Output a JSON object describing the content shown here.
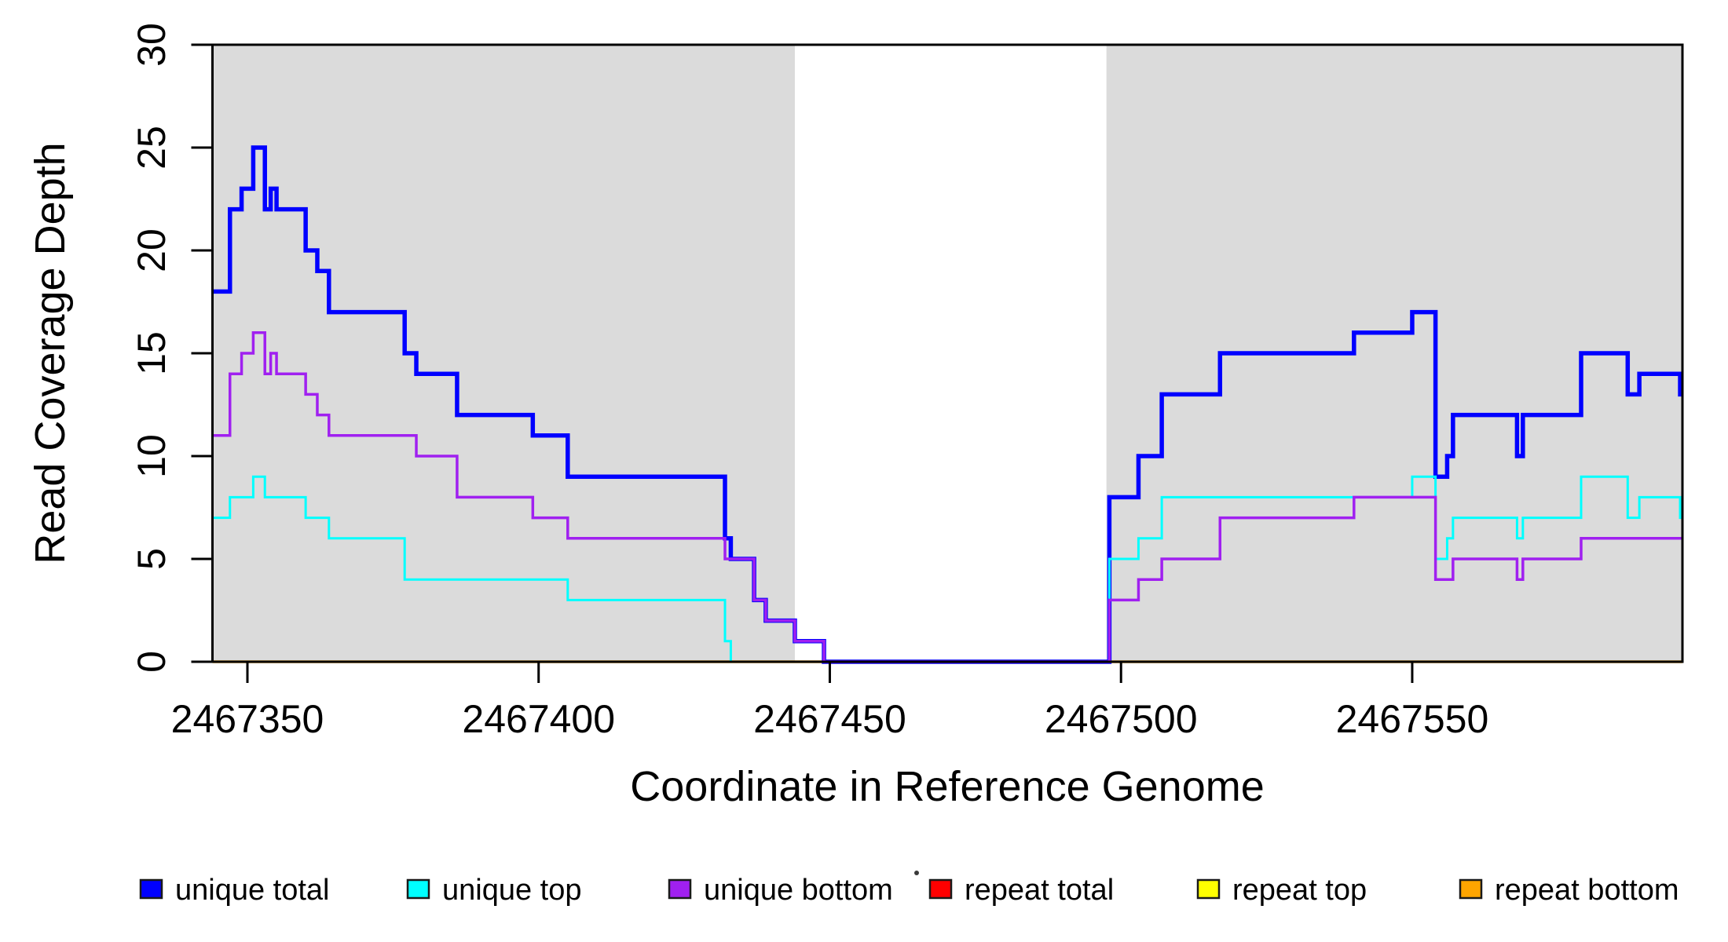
{
  "chart_data": {
    "type": "line",
    "subtype": "step",
    "title": "",
    "xlabel": "Coordinate in Reference Genome",
    "ylabel": "Read Coverage Depth",
    "xlim": [
      2467344,
      2467596.4
    ],
    "ylim": [
      0,
      30
    ],
    "x_ticks": [
      2467350,
      2467400,
      2467450,
      2467500,
      2467550
    ],
    "y_ticks": [
      0,
      5,
      10,
      15,
      20,
      25,
      30
    ],
    "grid": false,
    "background_bands": {
      "color": "#DBDBDB",
      "regions": [
        {
          "start": 2467344,
          "end": 2467444
        },
        {
          "start": 2467497.5,
          "end": 2467596.4
        }
      ]
    },
    "legend": {
      "position": "bottom",
      "entries": [
        {
          "label": "unique total",
          "color": "#0000FF"
        },
        {
          "label": "unique top",
          "color": "#00FFFF"
        },
        {
          "label": "unique bottom",
          "color": "#A020F0"
        },
        {
          "label": "repeat total",
          "color": "#FF0000"
        },
        {
          "label": "repeat top",
          "color": "#FFFF00"
        },
        {
          "label": "repeat bottom",
          "color": "#FFA500"
        }
      ]
    },
    "series": [
      {
        "name": "unique total",
        "color": "#0000FF",
        "width": 5.5,
        "points": [
          [
            2467344,
            18
          ],
          [
            2467347,
            22
          ],
          [
            2467349,
            23
          ],
          [
            2467351,
            25
          ],
          [
            2467353,
            22
          ],
          [
            2467354,
            23
          ],
          [
            2467355,
            22
          ],
          [
            2467360,
            20
          ],
          [
            2467362,
            19
          ],
          [
            2467364,
            17
          ],
          [
            2467377,
            15
          ],
          [
            2467379,
            14
          ],
          [
            2467386,
            12
          ],
          [
            2467399,
            11
          ],
          [
            2467405,
            9
          ],
          [
            2467432,
            6
          ],
          [
            2467433,
            5
          ],
          [
            2467437,
            3
          ],
          [
            2467439,
            2
          ],
          [
            2467444,
            1
          ],
          [
            2467449,
            0
          ],
          [
            2467498,
            8
          ],
          [
            2467503,
            10
          ],
          [
            2467507,
            13
          ],
          [
            2467517,
            15
          ],
          [
            2467540,
            16
          ],
          [
            2467550,
            17
          ],
          [
            2467554,
            9
          ],
          [
            2467556,
            10
          ],
          [
            2467557,
            12
          ],
          [
            2467568,
            10
          ],
          [
            2467569,
            12
          ],
          [
            2467579,
            15
          ],
          [
            2467587,
            13
          ],
          [
            2467589,
            14
          ],
          [
            2467596,
            13
          ]
        ]
      },
      {
        "name": "unique top",
        "color": "#00FFFF",
        "width": 3,
        "points": [
          [
            2467344,
            7
          ],
          [
            2467347,
            8
          ],
          [
            2467351,
            9
          ],
          [
            2467353,
            8
          ],
          [
            2467360,
            7
          ],
          [
            2467364,
            6
          ],
          [
            2467377,
            4
          ],
          [
            2467405,
            3
          ],
          [
            2467432,
            1
          ],
          [
            2467433,
            0
          ],
          [
            2467498,
            5
          ],
          [
            2467503,
            6
          ],
          [
            2467507,
            8
          ],
          [
            2467550,
            9
          ],
          [
            2467554,
            5
          ],
          [
            2467556,
            6
          ],
          [
            2467557,
            7
          ],
          [
            2467568,
            6
          ],
          [
            2467569,
            7
          ],
          [
            2467579,
            9
          ],
          [
            2467587,
            7
          ],
          [
            2467589,
            8
          ],
          [
            2467596,
            7
          ]
        ]
      },
      {
        "name": "unique bottom",
        "color": "#A020F0",
        "width": 3.5,
        "points": [
          [
            2467344,
            11
          ],
          [
            2467347,
            14
          ],
          [
            2467349,
            15
          ],
          [
            2467351,
            16
          ],
          [
            2467353,
            14
          ],
          [
            2467354,
            15
          ],
          [
            2467355,
            14
          ],
          [
            2467360,
            13
          ],
          [
            2467362,
            12
          ],
          [
            2467364,
            11
          ],
          [
            2467379,
            10
          ],
          [
            2467386,
            8
          ],
          [
            2467399,
            7
          ],
          [
            2467405,
            6
          ],
          [
            2467432,
            5
          ],
          [
            2467437,
            3
          ],
          [
            2467439,
            2
          ],
          [
            2467444,
            1
          ],
          [
            2467449,
            0
          ],
          [
            2467498,
            3
          ],
          [
            2467503,
            4
          ],
          [
            2467507,
            5
          ],
          [
            2467517,
            7
          ],
          [
            2467540,
            8
          ],
          [
            2467554,
            4
          ],
          [
            2467557,
            5
          ],
          [
            2467568,
            4
          ],
          [
            2467569,
            5
          ],
          [
            2467579,
            6
          ]
        ]
      },
      {
        "name": "repeat total",
        "color": "#FF0000",
        "width": 3,
        "points": [
          [
            2467344,
            0
          ]
        ]
      },
      {
        "name": "repeat top",
        "color": "#FFFF00",
        "width": 3,
        "points": [
          [
            2467344,
            0
          ]
        ]
      },
      {
        "name": "repeat bottom",
        "color": "#FFA500",
        "width": 3.5,
        "points": [
          [
            2467344,
            0
          ]
        ]
      }
    ]
  }
}
